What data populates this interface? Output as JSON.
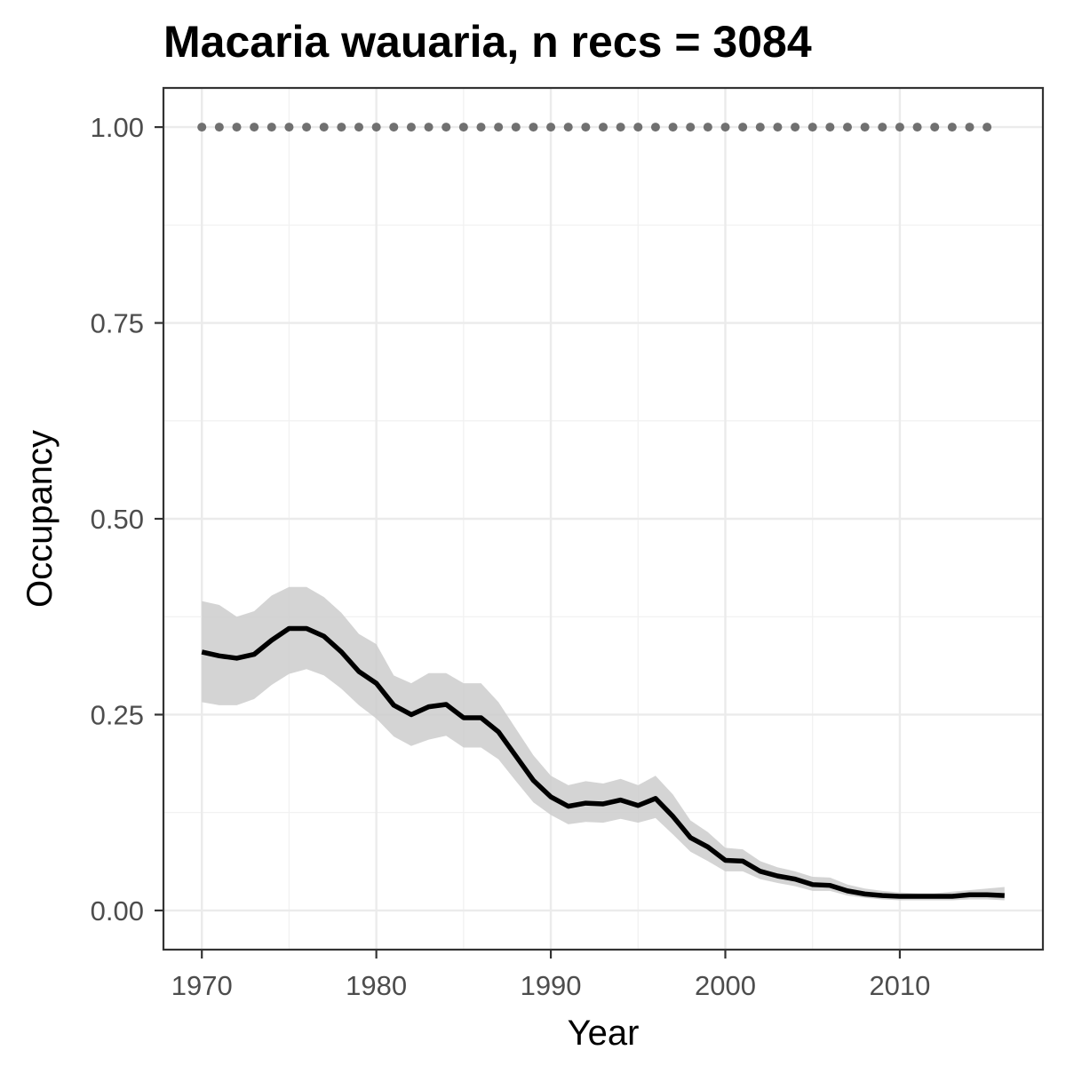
{
  "chart_data": {
    "type": "line",
    "title": "Macaria wauaria, n recs = 3084",
    "xlabel": "Year",
    "ylabel": "Occupancy",
    "xlim": [
      1967.8,
      2018.2
    ],
    "ylim": [
      -0.05,
      1.05
    ],
    "x_ticks": [
      1970,
      1980,
      1990,
      2000,
      2010
    ],
    "x_tick_labels": [
      "1970",
      "1980",
      "1990",
      "2000",
      "2010"
    ],
    "y_ticks": [
      0,
      0.25,
      0.5,
      0.75,
      1
    ],
    "y_tick_labels": [
      "0.00",
      "0.25",
      "0.50",
      "0.75",
      "1.00"
    ],
    "grid": true,
    "legend": "none",
    "series": [
      {
        "role": "mean",
        "color": "#000000",
        "x": [
          1970,
          1971,
          1972,
          1973,
          1974,
          1975,
          1976,
          1977,
          1978,
          1979,
          1980,
          1981,
          1982,
          1983,
          1984,
          1985,
          1986,
          1987,
          1988,
          1989,
          1990,
          1991,
          1992,
          1993,
          1994,
          1995,
          1996,
          1997,
          1998,
          1999,
          2000,
          2001,
          2002,
          2003,
          2004,
          2005,
          2006,
          2007,
          2008,
          2009,
          2010,
          2011,
          2012,
          2013,
          2014,
          2015,
          2016
        ],
        "values": [
          0.33,
          0.325,
          0.322,
          0.327,
          0.345,
          0.36,
          0.36,
          0.35,
          0.33,
          0.305,
          0.29,
          0.262,
          0.25,
          0.26,
          0.263,
          0.246,
          0.246,
          0.228,
          0.197,
          0.166,
          0.145,
          0.133,
          0.137,
          0.136,
          0.141,
          0.134,
          0.143,
          0.12,
          0.093,
          0.081,
          0.064,
          0.063,
          0.05,
          0.044,
          0.04,
          0.033,
          0.032,
          0.025,
          0.021,
          0.019,
          0.018,
          0.018,
          0.018,
          0.018,
          0.02,
          0.02,
          0.019
        ]
      },
      {
        "role": "upper",
        "color": "#cccccc",
        "x": [
          1970,
          1971,
          1972,
          1973,
          1974,
          1975,
          1976,
          1977,
          1978,
          1979,
          1980,
          1981,
          1982,
          1983,
          1984,
          1985,
          1986,
          1987,
          1988,
          1989,
          1990,
          1991,
          1992,
          1993,
          1994,
          1995,
          1996,
          1997,
          1998,
          1999,
          2000,
          2001,
          2002,
          2003,
          2004,
          2005,
          2006,
          2007,
          2008,
          2009,
          2010,
          2011,
          2012,
          2013,
          2014,
          2015,
          2016
        ],
        "values": [
          0.395,
          0.39,
          0.375,
          0.382,
          0.402,
          0.413,
          0.413,
          0.4,
          0.38,
          0.353,
          0.34,
          0.3,
          0.29,
          0.303,
          0.303,
          0.29,
          0.29,
          0.266,
          0.232,
          0.198,
          0.172,
          0.16,
          0.165,
          0.162,
          0.168,
          0.16,
          0.172,
          0.148,
          0.115,
          0.1,
          0.08,
          0.078,
          0.063,
          0.055,
          0.05,
          0.043,
          0.042,
          0.033,
          0.028,
          0.025,
          0.023,
          0.022,
          0.022,
          0.024,
          0.026,
          0.028,
          0.03
        ]
      },
      {
        "role": "lower",
        "color": "#cccccc",
        "x": [
          1970,
          1971,
          1972,
          1973,
          1974,
          1975,
          1976,
          1977,
          1978,
          1979,
          1980,
          1981,
          1982,
          1983,
          1984,
          1985,
          1986,
          1987,
          1988,
          1989,
          1990,
          1991,
          1992,
          1993,
          1994,
          1995,
          1996,
          1997,
          1998,
          1999,
          2000,
          2001,
          2002,
          2003,
          2004,
          2005,
          2006,
          2007,
          2008,
          2009,
          2010,
          2011,
          2012,
          2013,
          2014,
          2015,
          2016
        ],
        "values": [
          0.266,
          0.262,
          0.262,
          0.27,
          0.288,
          0.302,
          0.308,
          0.3,
          0.283,
          0.262,
          0.245,
          0.222,
          0.21,
          0.218,
          0.223,
          0.208,
          0.208,
          0.193,
          0.165,
          0.138,
          0.122,
          0.11,
          0.113,
          0.112,
          0.117,
          0.112,
          0.118,
          0.097,
          0.075,
          0.063,
          0.05,
          0.05,
          0.04,
          0.035,
          0.031,
          0.025,
          0.025,
          0.019,
          0.016,
          0.014,
          0.013,
          0.013,
          0.013,
          0.013,
          0.014,
          0.014,
          0.013
        ]
      },
      {
        "role": "reference",
        "style": "dotted",
        "color": "#707070",
        "x": [
          1970,
          1971,
          1972,
          1973,
          1974,
          1975,
          1976,
          1977,
          1978,
          1979,
          1980,
          1981,
          1982,
          1983,
          1984,
          1985,
          1986,
          1987,
          1988,
          1989,
          1990,
          1991,
          1992,
          1993,
          1994,
          1995,
          1996,
          1997,
          1998,
          1999,
          2000,
          2001,
          2002,
          2003,
          2004,
          2005,
          2006,
          2007,
          2008,
          2009,
          2010,
          2011,
          2012,
          2013,
          2014,
          2015
        ],
        "values": [
          1,
          1,
          1,
          1,
          1,
          1,
          1,
          1,
          1,
          1,
          1,
          1,
          1,
          1,
          1,
          1,
          1,
          1,
          1,
          1,
          1,
          1,
          1,
          1,
          1,
          1,
          1,
          1,
          1,
          1,
          1,
          1,
          1,
          1,
          1,
          1,
          1,
          1,
          1,
          1,
          1,
          1,
          1,
          1,
          1,
          1
        ]
      }
    ]
  }
}
